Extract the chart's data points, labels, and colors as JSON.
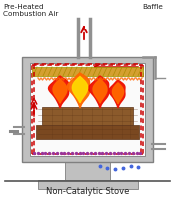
{
  "title": "Non-Catalytic Stove",
  "label_preheated": "Pre-Heated\nCombustion Air",
  "label_baffle": "Baffle",
  "bg_color": "#ffffff",
  "stove_gray": "#c0c0c0",
  "stove_edge": "#808080",
  "firebox_bg": "#ffffff",
  "baffle_color": "#d4a030",
  "log_color": "#8B5A2B",
  "log_dark": "#5C3317",
  "log_mid": "#7a4820",
  "flame_red": "#EE1100",
  "flame_orange": "#FF6600",
  "flame_yellow": "#FFD700",
  "arrow_red": "#CC0000",
  "dots_purple": "#993399",
  "dots_blue": "#4466DD",
  "pipe_gray": "#909090",
  "text_color": "#222222"
}
